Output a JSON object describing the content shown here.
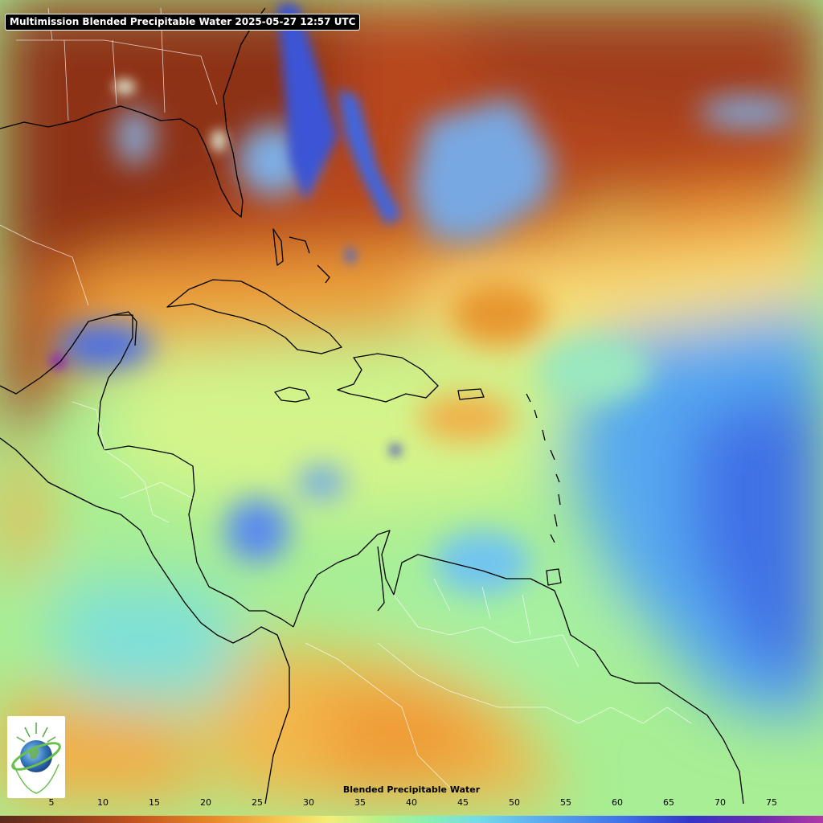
{
  "title": "Multimission Blended Precipitable Water  2025-05-27 12:57 UTC",
  "colorbar": {
    "label": "Blended Precipitable Water",
    "ticks": [
      "5",
      "10",
      "15",
      "20",
      "25",
      "30",
      "35",
      "40",
      "45",
      "50",
      "55",
      "60",
      "65",
      "70",
      "75"
    ]
  },
  "colors": {
    "dry": "#8a3a1e",
    "moderate": "#e88a2a",
    "humid": "#f4ef7a",
    "moist": "#8af0b0",
    "wet": "#5aaaf0",
    "very_wet": "#3434c8",
    "extreme": "#8a2ab0",
    "coastline": "#000000",
    "borders": "#ffffff"
  },
  "logo": {
    "icon": "cira-globe-icon"
  }
}
